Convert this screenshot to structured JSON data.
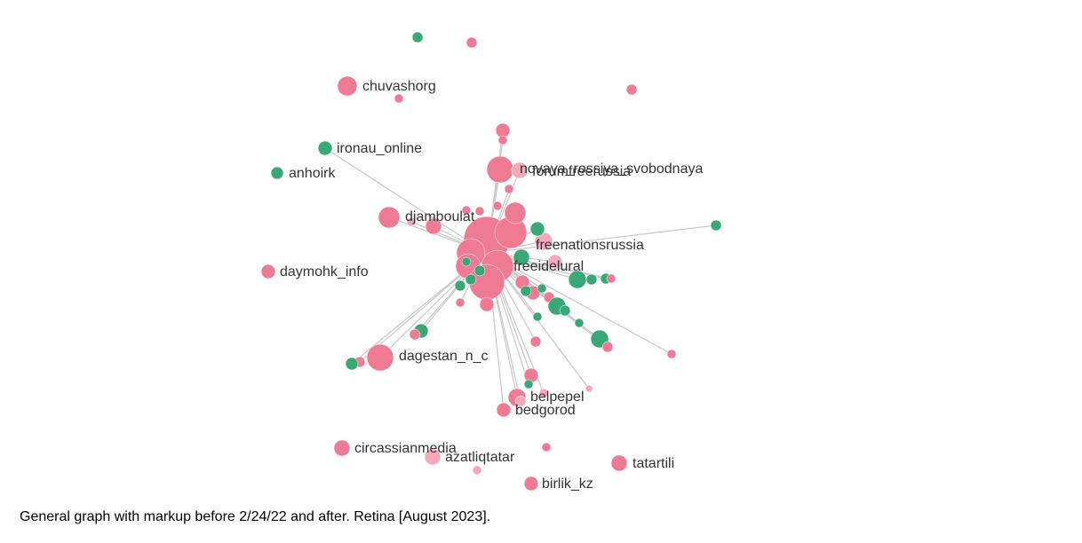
{
  "nodes": [
    {
      "label": "chuvashorg"
    },
    {
      "label": "ironau_online"
    },
    {
      "label": "anhoirk"
    },
    {
      "label": "novaya_rossiya_svobodnaya"
    },
    {
      "label": "forumfreerussia"
    },
    {
      "label": "djamboulat"
    },
    {
      "label": "freenationsrussia"
    },
    {
      "label": "freeidelural"
    },
    {
      "label": "daymohk_info"
    },
    {
      "label": "dagestan_n_c"
    },
    {
      "label": "belpepel"
    },
    {
      "label": "bedgorod"
    },
    {
      "label": "circassianmedia"
    },
    {
      "label": "azatliqtatar"
    },
    {
      "label": "tatartili"
    },
    {
      "label": "birlik_kz"
    }
  ],
  "caption": "General graph with markup before 2/24/22 and after. Retina [August 2023]."
}
